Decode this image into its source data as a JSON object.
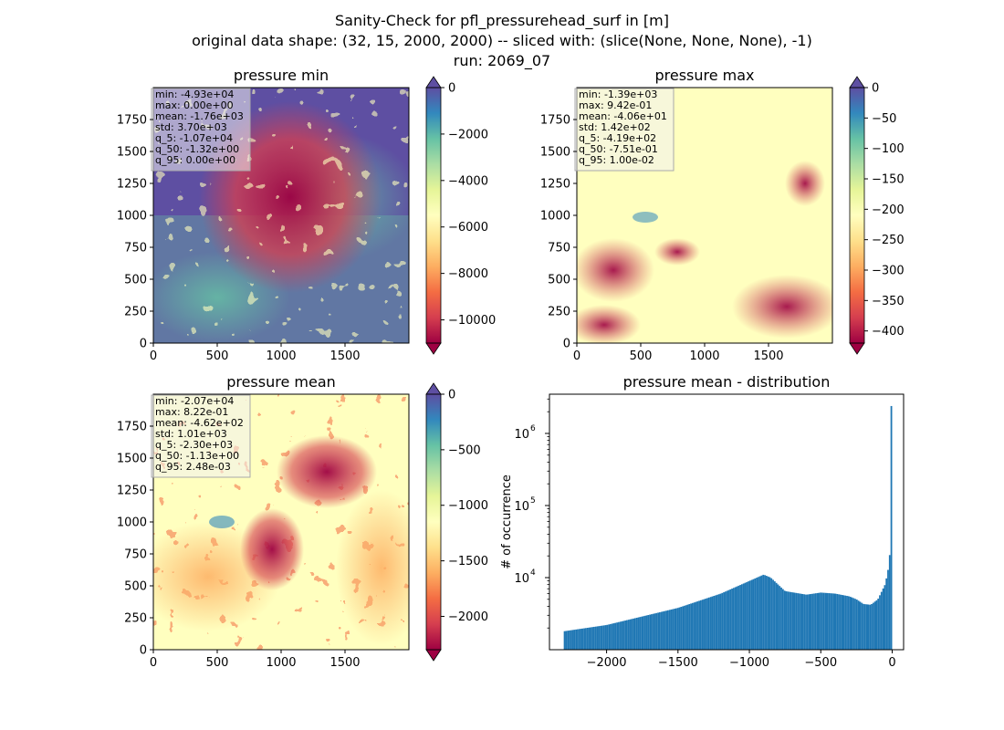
{
  "figure": {
    "suptitle_lines": [
      "Sanity-Check for pfl_pressurehead_surf in [m]",
      "original data shape: (32, 15, 2000, 2000) -- sliced with: (slice(None, None, None), -1)",
      "run: 2069_07"
    ]
  },
  "panels": [
    {
      "title": "pressure min",
      "stats": [
        "min: -4.93e+04",
        "max: 0.00e+00",
        "mean: -1.76e+03",
        "std: 3.70e+03",
        "q_5: -1.07e+04",
        "q_50: -1.32e+00",
        "q_95: 0.00e+00"
      ],
      "dominant_color": "#5e4fa2",
      "colorbar": {
        "vmin": -11000,
        "vmax": 0,
        "ticks": [
          0,
          -2000,
          -4000,
          -6000,
          -8000,
          -10000
        ],
        "tick_labels": [
          "0",
          "−2000",
          "−4000",
          "−6000",
          "−8000",
          "−10000"
        ]
      }
    },
    {
      "title": "pressure max",
      "stats": [
        "min: -1.39e+03",
        "max: 9.42e-01",
        "mean: -4.06e+01",
        "std: 1.42e+02",
        "q_5: -4.19e+02",
        "q_50: -7.51e-01",
        "q_95: 1.00e-02"
      ],
      "dominant_color": "#ffffbf",
      "colorbar": {
        "vmin": -420,
        "vmax": 0,
        "ticks": [
          0,
          -50,
          -100,
          -150,
          -200,
          -250,
          -300,
          -350,
          -400
        ],
        "tick_labels": [
          "0",
          "−50",
          "−100",
          "−150",
          "−200",
          "−250",
          "−300",
          "−350",
          "−400"
        ]
      }
    },
    {
      "title": "pressure mean",
      "stats": [
        "min: -2.07e+04",
        "max: 8.22e-01",
        "mean: -4.62e+02",
        "std: 1.01e+03",
        "q_5: -2.30e+03",
        "q_50: -1.13e+00",
        "q_95: 2.48e-03"
      ],
      "dominant_color": "#ffffbf",
      "colorbar": {
        "vmin": -2300,
        "vmax": 0,
        "ticks": [
          0,
          -500,
          -1000,
          -1500,
          -2000
        ],
        "tick_labels": [
          "0",
          "−500",
          "−1000",
          "−1500",
          "−2000"
        ]
      }
    }
  ],
  "image_axes": {
    "x_ticks": [
      0,
      500,
      1000,
      1500
    ],
    "x_tick_labels": [
      "0",
      "500",
      "1000",
      "1500"
    ],
    "y_ticks": [
      0,
      250,
      500,
      750,
      1000,
      1250,
      1500,
      1750
    ],
    "y_tick_labels": [
      "0",
      "250",
      "500",
      "750",
      "1000",
      "1250",
      "1500",
      "1750"
    ],
    "range": [
      0,
      2000
    ]
  },
  "colormap": {
    "name": "Spectral",
    "stops": [
      "#9e0142",
      "#d53e4f",
      "#f46d43",
      "#fdae61",
      "#fee08b",
      "#ffffbf",
      "#e6f598",
      "#abdda4",
      "#66c2a5",
      "#3288bd",
      "#5e4fa2"
    ]
  },
  "chart_data": {
    "type": "bar",
    "title": "pressure mean - distribution",
    "xlabel": "",
    "ylabel": "# of occurrence",
    "yscale": "log",
    "xlim": [
      -2400,
      80
    ],
    "ylim": [
      1000,
      3500000
    ],
    "x_ticks": [
      -2000,
      -1500,
      -1000,
      -500,
      0
    ],
    "x_tick_labels": [
      "−2000",
      "−1500",
      "−1000",
      "−500",
      "0"
    ],
    "y_ticks": [
      10000,
      100000,
      1000000
    ],
    "y_tick_labels": [
      "10",
      "10",
      "10"
    ],
    "y_tick_exponents": [
      "4",
      "5",
      "6"
    ],
    "bar_color": "#1f77b4",
    "bin_range": [
      -2300,
      0
    ],
    "bin_count": 200,
    "profile_x": [
      -2300,
      -2000,
      -1500,
      -1200,
      -900,
      -850,
      -750,
      -600,
      -500,
      -400,
      -300,
      -250,
      -200,
      -150,
      -100,
      -50,
      -30,
      -20,
      -10,
      -5,
      0
    ],
    "profile_y": [
      1800,
      2200,
      3800,
      6000,
      11000,
      10000,
      6500,
      5800,
      6200,
      6000,
      5500,
      5000,
      4300,
      4200,
      5000,
      8000,
      12000,
      20000,
      22000,
      25000,
      2400000
    ]
  }
}
